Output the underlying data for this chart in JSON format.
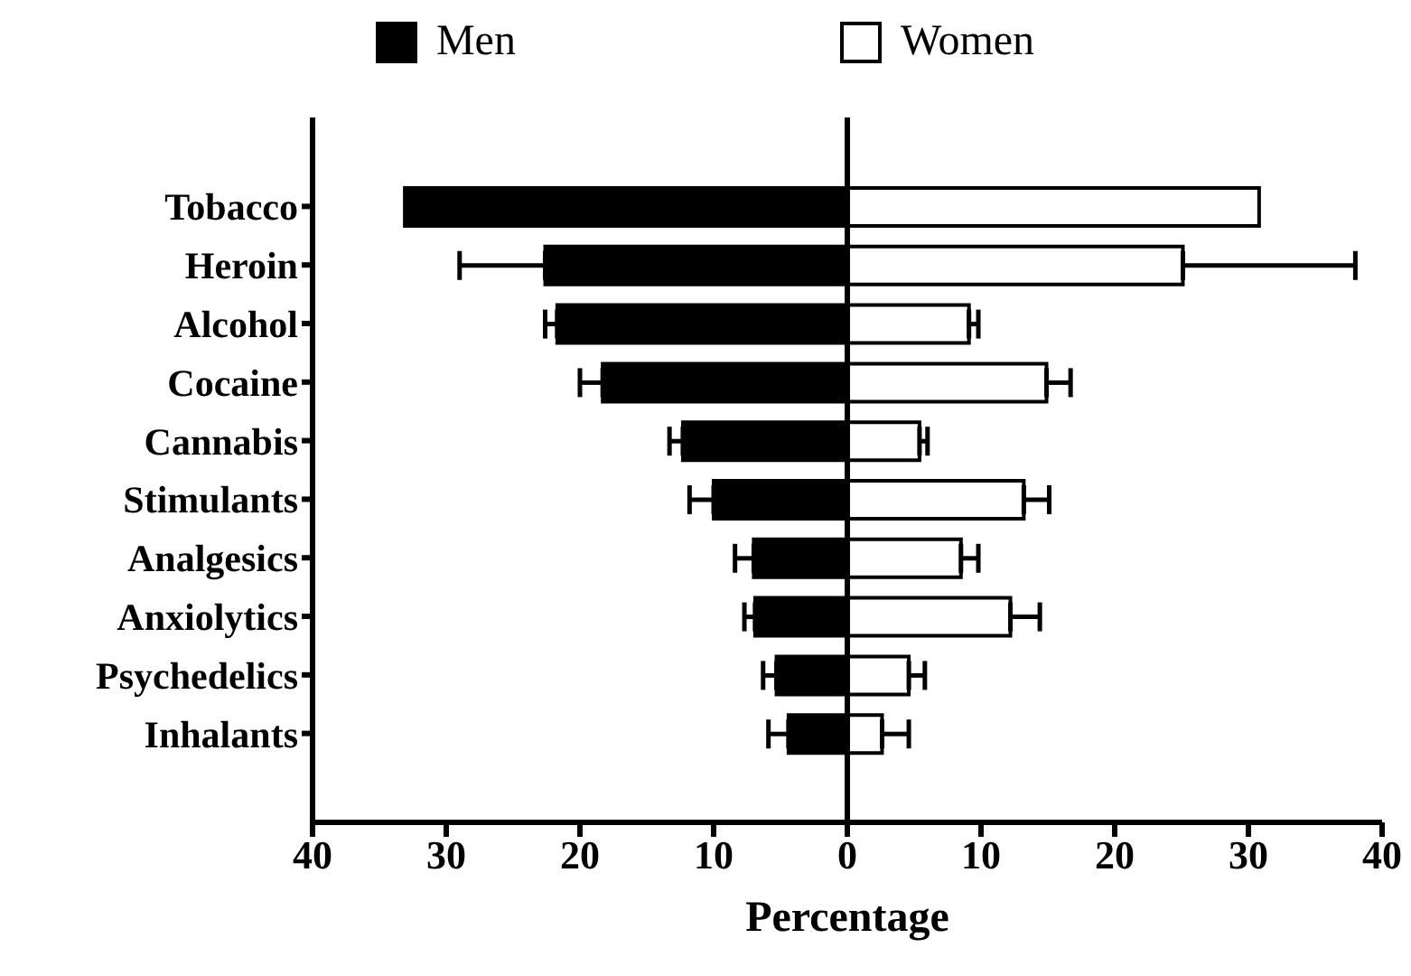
{
  "chart_data": {
    "type": "bar",
    "orientation": "horizontal",
    "stacked": true,
    "xlabel": "Percentage",
    "categories": [
      "Tobacco",
      "Heroin",
      "Alcohol",
      "Cocaine",
      "Cannabis",
      "Stimulants",
      "Analgesics",
      "Anxiolytics",
      "Psychedelics",
      "Inhalants"
    ],
    "series": [
      {
        "name": "Men",
        "color": "#000000",
        "values": [
          -33.1,
          -22.6,
          -21.7,
          -18.3,
          -12.3,
          -10.0,
          -7.0,
          -6.9,
          -5.3,
          -4.4
        ],
        "errors": [
          null,
          [
            -29.0,
            -22.6
          ],
          [
            -22.6,
            -21.7
          ],
          [
            -20.0,
            -18.3
          ],
          [
            -13.3,
            -12.3
          ],
          [
            -11.8,
            -10.0
          ],
          [
            -8.4,
            -7.0
          ],
          [
            -7.7,
            -6.9
          ],
          [
            -6.3,
            -5.3
          ],
          [
            -5.9,
            -4.4
          ]
        ]
      },
      {
        "name": "Women",
        "color": "#ffffff",
        "values": [
          30.8,
          25.1,
          9.1,
          14.9,
          5.4,
          13.2,
          8.5,
          12.2,
          4.6,
          2.6
        ],
        "errors": [
          null,
          [
            25.1,
            38.0
          ],
          [
            9.1,
            9.8
          ],
          [
            14.9,
            16.7
          ],
          [
            5.4,
            6.0
          ],
          [
            13.2,
            15.1
          ],
          [
            8.5,
            9.8
          ],
          [
            12.2,
            14.4
          ],
          [
            4.6,
            5.8
          ],
          [
            2.6,
            4.6
          ]
        ]
      }
    ],
    "xlim": [
      -40,
      40
    ],
    "xticks": [
      {
        "value": -40,
        "label": "40"
      },
      {
        "value": -30,
        "label": "30"
      },
      {
        "value": -20,
        "label": "20"
      },
      {
        "value": -10,
        "label": "10"
      },
      0,
      10,
      20,
      30,
      40
    ],
    "ref_lines": [
      {
        "axis": "x",
        "value": 0
      }
    ],
    "legend": "top"
  }
}
